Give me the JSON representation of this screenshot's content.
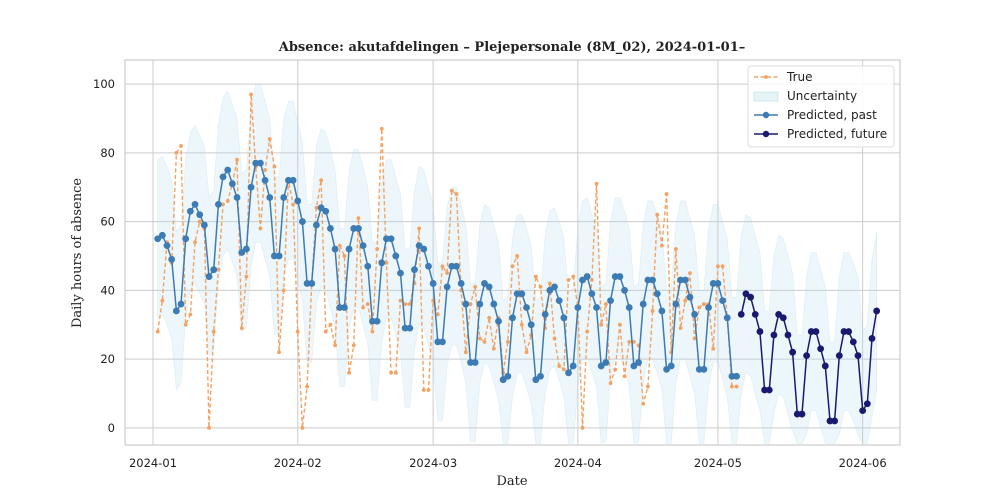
{
  "chart_data": {
    "type": "line",
    "title": "Absence: akutafdelingen – Plejepersonale (8M_02), 2024-01-01–",
    "xlabel": "Date",
    "ylabel": "Daily hours of absence",
    "x_range": [
      "2023-12-26",
      "2024-06-09"
    ],
    "ylim": [
      -5,
      107
    ],
    "grid": true,
    "legend_position": "top-right",
    "x_ticks": [
      "2024-01",
      "2024-02",
      "2024-03",
      "2024-04",
      "2024-05",
      "2024-06"
    ],
    "y_ticks": [
      0,
      20,
      40,
      60,
      80,
      100
    ],
    "colors": {
      "true": "#f4a261",
      "uncertainty": "#add8e6",
      "predicted_past": "#3c7bb4",
      "predicted_future": "#191970"
    },
    "series": [
      {
        "name": "True",
        "start_date": "2024-01-02",
        "values": [
          28,
          37,
          54,
          48,
          80,
          82,
          30,
          33,
          54,
          60,
          58,
          0,
          28,
          46,
          65,
          66,
          71,
          78,
          29,
          44,
          97,
          76,
          58,
          75,
          84,
          76,
          22,
          40,
          72,
          65,
          28,
          0,
          12,
          42,
          64,
          72,
          28,
          30,
          24,
          53,
          50,
          16,
          24,
          61,
          35,
          36,
          28,
          52,
          87,
          48,
          16,
          16,
          37,
          36,
          36,
          42,
          58,
          11,
          11,
          37,
          33,
          47,
          45,
          69,
          68,
          40,
          22,
          36,
          41,
          26,
          25,
          32,
          23,
          32,
          16,
          25,
          47,
          50,
          30,
          22,
          27,
          44,
          41,
          29,
          42,
          26,
          18,
          17,
          43,
          44,
          35,
          0,
          28,
          43,
          71,
          30,
          36,
          13,
          17,
          30,
          15,
          25,
          25,
          24,
          7,
          12,
          34,
          62,
          53,
          68,
          22,
          52,
          29,
          37,
          45,
          26,
          35,
          36,
          36,
          23,
          47,
          47,
          32,
          12,
          12
        ]
      },
      {
        "name": "Predicted, past",
        "start_date": "2024-01-02",
        "values": [
          55,
          56,
          53,
          49,
          34,
          36,
          55,
          63,
          65,
          62,
          59,
          44,
          46,
          65,
          73,
          75,
          71,
          67,
          51,
          52,
          70,
          77,
          77,
          72,
          67,
          50,
          50,
          67,
          72,
          72,
          66,
          60,
          42,
          42,
          59,
          64,
          63,
          58,
          52,
          35,
          35,
          52,
          58,
          58,
          53,
          47,
          31,
          31,
          48,
          55,
          55,
          50,
          45,
          29,
          29,
          46,
          53,
          52,
          47,
          42,
          25,
          25,
          41,
          47,
          47,
          42,
          36,
          19,
          19,
          36,
          42,
          41,
          36,
          31,
          14,
          15,
          32,
          39,
          39,
          35,
          30,
          14,
          15,
          33,
          40,
          41,
          37,
          32,
          16,
          18,
          35,
          43,
          44,
          39,
          35,
          18,
          19,
          37,
          44,
          44,
          40,
          35,
          18,
          19,
          36,
          43,
          43,
          39,
          34,
          17,
          18,
          36,
          43,
          43,
          38,
          33,
          17,
          17,
          35,
          42,
          42,
          37,
          32,
          15,
          15
        ]
      },
      {
        "name": "Predicted, future",
        "start_date": "2024-05-06",
        "values": [
          33,
          39,
          38,
          33,
          28,
          11,
          11,
          27,
          33,
          32,
          27,
          22,
          4,
          4,
          21,
          28,
          28,
          23,
          18,
          2,
          2,
          21,
          28,
          28,
          25,
          21,
          5,
          7,
          26,
          34
        ]
      }
    ],
    "uncertainty_band": {
      "name": "Uncertainty",
      "start_date": "2024-01-02",
      "half_width": 23
    }
  }
}
